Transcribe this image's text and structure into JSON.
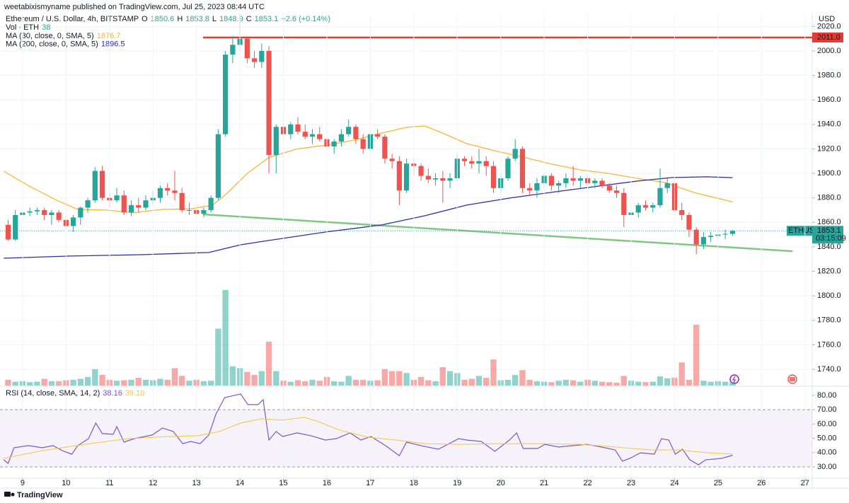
{
  "header": {
    "publisher": "weetabixismyname published on TradingView.com, Jul 25, 2023 08:44 UTC",
    "footer_brand": "TradingView"
  },
  "chart_data": [
    {
      "type": "candlestick",
      "title": "Ethereum / U.S. Dollar, 4h, BITSTAMP",
      "ohlc_labels": [
        "O",
        "H",
        "L",
        "C"
      ],
      "change": "+2.6 (+0.14%)",
      "y_axis_label": "USD",
      "up_color": "#26a69a",
      "down_color": "#ef5350",
      "grid": true,
      "xlim": [
        -1.12,
        111
      ],
      "ylim": [
        1726.7,
        2031.2
      ],
      "yticks": [
        {
          "value": 1740,
          "label": "1740.0"
        },
        {
          "value": 1760,
          "label": "1760.0"
        },
        {
          "value": 1780,
          "label": "1780.0"
        },
        {
          "value": 1800,
          "label": "1800.0"
        },
        {
          "value": 1820,
          "label": "1820.0"
        },
        {
          "value": 1840,
          "label": "1840.0"
        },
        {
          "value": 1860,
          "label": "1860.0"
        },
        {
          "value": 1880,
          "label": "1880.0"
        },
        {
          "value": 1900,
          "label": "1900.0"
        },
        {
          "value": 1920,
          "label": "1920.0"
        },
        {
          "value": 1940,
          "label": "1940.0"
        },
        {
          "value": 1960,
          "label": "1960.0"
        },
        {
          "value": 1980,
          "label": "1980.0"
        },
        {
          "value": 2000,
          "label": "2000.0"
        },
        {
          "value": 2020,
          "label": "2020.0"
        }
      ],
      "open": [
        1858,
        1846,
        1866,
        1868,
        1869,
        1870,
        1866,
        1868,
        1862,
        1857,
        1864,
        1872,
        1878,
        1902,
        1880,
        1878,
        1882,
        1868,
        1874,
        1872,
        1878,
        1880,
        1888,
        1886,
        1884,
        1870,
        1870,
        1867,
        1870,
        1880,
        1932,
        1997,
        2005,
        2010,
        1994,
        1991,
        2000,
        1915,
        1938,
        1932,
        1940,
        1934,
        1930,
        1932,
        1928,
        1922,
        1926,
        1932,
        1938,
        1928,
        1920,
        1932,
        1930,
        1912,
        1910,
        1886,
        1908,
        1906,
        1898,
        1895,
        1896,
        1894,
        1896,
        1912,
        1910,
        1908,
        1910,
        1906,
        1888,
        1896,
        1912,
        1920,
        1888,
        1886,
        1892,
        1898,
        1890,
        1892,
        1896,
        1894,
        1896,
        1892,
        1894,
        1890,
        1886,
        1884,
        1866,
        1868,
        1874,
        1872,
        1874,
        1888,
        1892,
        1870,
        1866,
        1854,
        1842,
        1848,
        1849,
        1850,
        1850.6
      ],
      "high": [
        1862,
        1870,
        1870,
        1872,
        1872,
        1872,
        1870,
        1870,
        1866,
        1866,
        1873,
        1880,
        1905,
        1906,
        1884,
        1888,
        1886,
        1878,
        1880,
        1882,
        1886,
        1890,
        1892,
        1902,
        1888,
        1876,
        1874,
        1872,
        1882,
        1936,
        2000,
        2012,
        2031,
        2012,
        2000,
        2006,
        2004,
        1940,
        1942,
        1942,
        1946,
        1940,
        1936,
        1938,
        1934,
        1928,
        1936,
        1944,
        1940,
        1932,
        1936,
        1936,
        1932,
        1916,
        1914,
        1912,
        1912,
        1908,
        1904,
        1900,
        1902,
        1900,
        1916,
        1914,
        1914,
        1920,
        1914,
        1910,
        1900,
        1914,
        1928,
        1922,
        1892,
        1896,
        1900,
        1900,
        1894,
        1900,
        1906,
        1898,
        1898,
        1896,
        1896,
        1892,
        1890,
        1888,
        1872,
        1876,
        1878,
        1876,
        1904,
        1896,
        1894,
        1876,
        1868,
        1856,
        1852,
        1852,
        1856,
        1854,
        1853.8
      ],
      "low": [
        1845,
        1845,
        1862,
        1865,
        1866,
        1862,
        1858,
        1860,
        1854,
        1852,
        1858,
        1868,
        1876,
        1878,
        1872,
        1876,
        1866,
        1865,
        1868,
        1870,
        1874,
        1876,
        1882,
        1878,
        1868,
        1866,
        1866,
        1864,
        1868,
        1878,
        1930,
        1990,
        2000,
        1990,
        1986,
        1986,
        1900,
        1900,
        1928,
        1928,
        1932,
        1928,
        1924,
        1926,
        1918,
        1916,
        1922,
        1930,
        1924,
        1916,
        1918,
        1928,
        1908,
        1904,
        1874,
        1884,
        1898,
        1894,
        1892,
        1890,
        1876,
        1888,
        1894,
        1906,
        1904,
        1900,
        1898,
        1884,
        1884,
        1894,
        1910,
        1884,
        1882,
        1880,
        1888,
        1886,
        1884,
        1888,
        1890,
        1888,
        1890,
        1888,
        1888,
        1884,
        1880,
        1856,
        1862,
        1864,
        1870,
        1868,
        1872,
        1884,
        1866,
        1862,
        1848,
        1834,
        1838,
        1844,
        1846,
        1846,
        1848.9
      ],
      "close": [
        1846,
        1866,
        1868,
        1869,
        1870,
        1866,
        1868,
        1862,
        1857,
        1864,
        1872,
        1878,
        1902,
        1880,
        1878,
        1882,
        1868,
        1874,
        1872,
        1878,
        1880,
        1888,
        1886,
        1884,
        1870,
        1870,
        1867,
        1870,
        1880,
        1932,
        1997,
        2005,
        2010,
        1994,
        1991,
        2000,
        1915,
        1938,
        1932,
        1940,
        1934,
        1930,
        1932,
        1928,
        1922,
        1926,
        1932,
        1938,
        1928,
        1920,
        1932,
        1930,
        1912,
        1910,
        1886,
        1908,
        1906,
        1898,
        1895,
        1896,
        1894,
        1896,
        1912,
        1910,
        1908,
        1910,
        1906,
        1888,
        1896,
        1912,
        1920,
        1888,
        1886,
        1892,
        1898,
        1890,
        1892,
        1896,
        1894,
        1896,
        1892,
        1894,
        1890,
        1886,
        1884,
        1866,
        1868,
        1874,
        1872,
        1874,
        1888,
        1892,
        1870,
        1866,
        1854,
        1842,
        1848,
        1849,
        1850,
        1850.6,
        1853.1
      ],
      "volume_label": "Vol · ETH",
      "vlim": [
        0,
        1100
      ],
      "volume": [
        60,
        40,
        45,
        35,
        40,
        70,
        45,
        45,
        55,
        60,
        70,
        90,
        170,
        110,
        60,
        50,
        55,
        60,
        80,
        60,
        55,
        70,
        60,
        180,
        100,
        50,
        60,
        45,
        50,
        590,
        990,
        200,
        180,
        140,
        110,
        150,
        455,
        150,
        50,
        40,
        55,
        45,
        60,
        50,
        90,
        45,
        40,
        100,
        60,
        60,
        50,
        55,
        170,
        150,
        150,
        130,
        60,
        90,
        55,
        45,
        190,
        150,
        130,
        60,
        70,
        100,
        80,
        270,
        55,
        60,
        110,
        160,
        60,
        45,
        40,
        35,
        50,
        60,
        55,
        40,
        60,
        50,
        40,
        35,
        30,
        100,
        50,
        40,
        35,
        40,
        95,
        75,
        80,
        240,
        60,
        630,
        50,
        40,
        45,
        40,
        38
      ],
      "series": [
        {
          "name": "MA (30, close, 0, SMA, 5)",
          "color": "#f5b731",
          "x": [
            -0.6,
            2.8,
            6.7,
            9.6,
            13.5,
            17.4,
            21.3,
            25.2,
            28.2,
            30.1,
            33,
            36,
            39.9,
            43.8,
            47.7,
            51.6,
            55,
            57.5,
            60.4,
            63.3,
            67.2,
            71.1,
            75,
            78.9,
            82.9,
            86.8,
            90.7,
            94.6,
            100
          ],
          "values": [
            1901.8,
            1890,
            1878,
            1870.6,
            1870,
            1868,
            1870.6,
            1871,
            1874,
            1883,
            1900,
            1913,
            1920,
            1923,
            1927,
            1933,
            1937.6,
            1938.8,
            1931.8,
            1924.3,
            1918.5,
            1913.3,
            1907.6,
            1902.9,
            1900,
            1896,
            1892.5,
            1884.5,
            1876.7
          ]
        },
        {
          "name": "MA (200, close, 0, SMA, 5)",
          "color": "#2a2ea8",
          "x": [
            -0.6,
            8.6,
            18.4,
            27.7,
            32.1,
            36,
            43.8,
            51.6,
            57.5,
            63.3,
            69.2,
            75,
            80.9,
            86.8,
            91.6,
            96.5,
            100
          ],
          "values": [
            1830.7,
            1832.5,
            1833.6,
            1835.4,
            1841.7,
            1845.2,
            1852.1,
            1857.9,
            1865.4,
            1874.1,
            1879.8,
            1884.5,
            1889.1,
            1893.7,
            1896.6,
            1897.2,
            1896.5
          ]
        }
      ],
      "hline": {
        "value": 2011.0,
        "label": "2011.0",
        "start": 26.9,
        "color": "#e53935"
      },
      "trendline": {
        "x": [
          26.9,
          108.3
        ],
        "values": [
          1866.5,
          1836.4
        ],
        "color": "#81c784"
      },
      "symbol_tag": "ETHUSD",
      "countdown": "03:15:09"
    },
    {
      "type": "line",
      "title": "RSI (14, close, SMA, 14, 2)",
      "last_ma_label": "39.10",
      "xlim": [
        -1.12,
        111
      ],
      "ylim": [
        22.6,
        85.4
      ],
      "band": [
        30,
        70
      ],
      "band_color": "#7e57c2",
      "yticks": [
        {
          "value": 30,
          "label": "30.00"
        },
        {
          "value": 40,
          "label": "40.00"
        },
        {
          "value": 50,
          "label": "50.00"
        },
        {
          "value": 60,
          "label": "60.00"
        },
        {
          "value": 70,
          "label": "70.00"
        },
        {
          "value": 80,
          "label": "80.00"
        }
      ],
      "xticks": [
        {
          "value": 2,
          "label": "9"
        },
        {
          "value": 8,
          "label": "10"
        },
        {
          "value": 14,
          "label": "11"
        },
        {
          "value": 20,
          "label": "12"
        },
        {
          "value": 26,
          "label": "13"
        },
        {
          "value": 32,
          "label": "14"
        },
        {
          "value": 38,
          "label": "15"
        },
        {
          "value": 44,
          "label": "16"
        },
        {
          "value": 50,
          "label": "17"
        },
        {
          "value": 56,
          "label": "18"
        },
        {
          "value": 62,
          "label": "19"
        },
        {
          "value": 68,
          "label": "20"
        },
        {
          "value": 74,
          "label": "21"
        },
        {
          "value": 80,
          "label": "22"
        },
        {
          "value": 86,
          "label": "23"
        },
        {
          "value": 92,
          "label": "24"
        },
        {
          "value": 98,
          "label": "25"
        },
        {
          "value": 104,
          "label": "26"
        },
        {
          "value": 110,
          "label": "27"
        }
      ],
      "series": [
        {
          "name": "RSI",
          "color": "#7e57c2",
          "x": [
            -0.6,
            0,
            0.8,
            2.8,
            4.7,
            6.2,
            7.7,
            8.8,
            9.6,
            11.1,
            12.1,
            13,
            14.5,
            15,
            16,
            17.4,
            19.9,
            21.3,
            22.8,
            24.1,
            25.2,
            26.5,
            27.7,
            28.7,
            29.9,
            32.1,
            33.1,
            34.5,
            35.2,
            36,
            37,
            37.9,
            39.9,
            41.8,
            43.8,
            45.3,
            47.2,
            48.7,
            50.1,
            52.1,
            54,
            55,
            57,
            59.4,
            62.2,
            63.3,
            65.3,
            67.2,
            69.2,
            70.2,
            71.1,
            73.1,
            74.1,
            76,
            78,
            79.9,
            81.9,
            83.8,
            84.8,
            86,
            87.3,
            89.2,
            90.2,
            91.2,
            92.1,
            93.1,
            94.1,
            95.3,
            96.3,
            98.5,
            100
          ],
          "values": [
            35,
            32.5,
            43.4,
            44.9,
            43.4,
            44.9,
            40.9,
            38.9,
            44.9,
            49.8,
            60.7,
            53.3,
            52.8,
            58.2,
            47.3,
            49.8,
            52.3,
            57.2,
            54.8,
            46.3,
            47.8,
            46.3,
            52.3,
            67.1,
            78.5,
            81,
            73.6,
            73.6,
            77,
            48.8,
            54.8,
            51.3,
            53.8,
            51.8,
            48.8,
            49.8,
            53.8,
            48.8,
            51.3,
            44.9,
            37.9,
            47.3,
            44.9,
            42.4,
            49.8,
            48.8,
            47.8,
            40.9,
            48.8,
            53.8,
            42.9,
            42.9,
            45.8,
            43.9,
            44.9,
            45.8,
            43.9,
            41.9,
            34,
            36.4,
            39.9,
            38.9,
            49.8,
            48.8,
            38.9,
            42.4,
            35,
            31.5,
            35,
            36,
            38.16
          ]
        },
        {
          "name": "RSI MA",
          "color": "#f5c542",
          "x": [
            -0.6,
            4.7,
            10.6,
            16.5,
            22.3,
            26.2,
            29.2,
            32.1,
            35,
            37.9,
            40.9,
            42.8,
            45.8,
            49.7,
            53.6,
            57.5,
            62.3,
            67.2,
            73.1,
            79,
            83.8,
            88.7,
            92.6,
            96.5,
            100
          ],
          "values": [
            36,
            41.4,
            45.8,
            49.8,
            51.3,
            51.8,
            54.8,
            60.7,
            63.7,
            62.7,
            64.7,
            61.7,
            55.7,
            50.8,
            48.8,
            46.3,
            45.8,
            46.3,
            46.3,
            45.8,
            43.9,
            41.9,
            41.9,
            39.9,
            39.1
          ]
        }
      ]
    }
  ]
}
